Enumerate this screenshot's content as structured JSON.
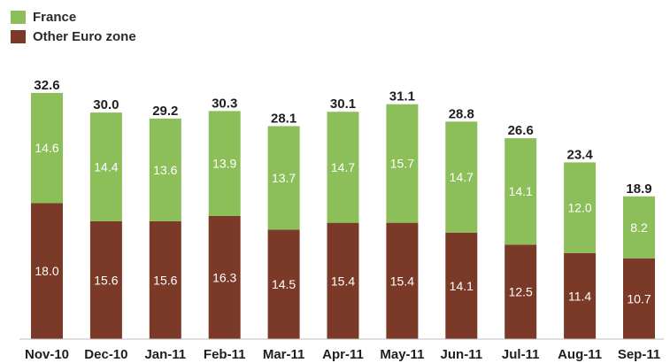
{
  "chart_data": {
    "type": "bar",
    "stacked": true,
    "title": "",
    "xlabel": "",
    "ylabel": "",
    "categories": [
      "Nov-10",
      "Dec-10",
      "Jan-11",
      "Feb-11",
      "Mar-11",
      "Apr-11",
      "May-11",
      "Jun-11",
      "Jul-11",
      "Aug-11",
      "Sep-11"
    ],
    "series": [
      {
        "name": "Other Euro zone",
        "color": "#7a3a27",
        "values": [
          18.0,
          15.6,
          15.6,
          16.3,
          14.5,
          15.4,
          15.4,
          14.1,
          12.5,
          11.4,
          10.7
        ]
      },
      {
        "name": "France",
        "color": "#8cbf5a",
        "values": [
          14.6,
          14.4,
          13.6,
          13.9,
          13.7,
          14.7,
          15.7,
          14.7,
          14.1,
          12.0,
          8.2
        ]
      }
    ],
    "totals": [
      32.6,
      30.0,
      29.2,
      30.3,
      28.1,
      30.1,
      31.1,
      28.8,
      26.6,
      23.4,
      18.9
    ],
    "legend": {
      "position": "top-left",
      "order": [
        "France",
        "Other Euro zone"
      ]
    },
    "grid": false
  }
}
